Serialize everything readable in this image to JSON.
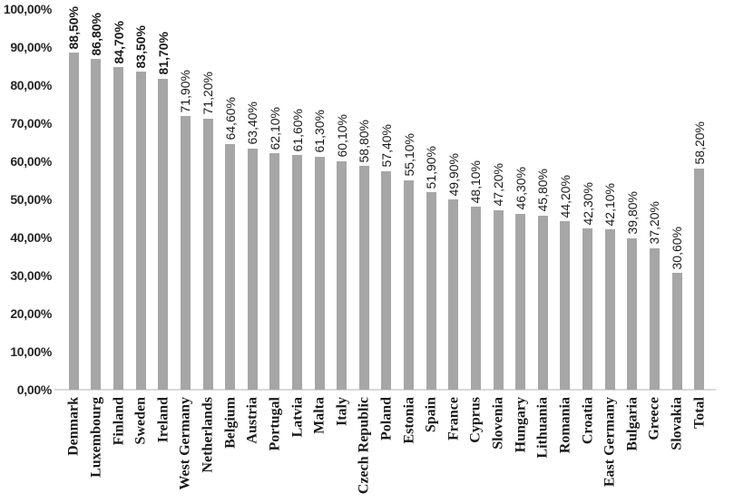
{
  "chart_data": {
    "type": "bar",
    "title": "",
    "xlabel": "",
    "ylabel": "",
    "categories": [
      "Denmark",
      "Luxembourg",
      "Finland",
      "Sweden",
      "Ireland",
      "West Germany",
      "Netherlands",
      "Belgium",
      "Austria",
      "Portugal",
      "Latvia",
      "Malta",
      "Italy",
      "Czech Republic",
      "Poland",
      "Estonia",
      "Spain",
      "France",
      "Cyprus",
      "Slovenia",
      "Hungary",
      "Lithuania",
      "Romania",
      "Croatia",
      "East Germany",
      "Bulgaria",
      "Greece",
      "Slovakia",
      "Total"
    ],
    "values": [
      88.5,
      86.8,
      84.7,
      83.5,
      81.7,
      71.9,
      71.2,
      64.6,
      63.4,
      62.1,
      61.6,
      61.3,
      60.1,
      58.8,
      57.4,
      55.1,
      51.9,
      49.9,
      48.1,
      47.2,
      46.3,
      45.8,
      44.2,
      42.3,
      42.1,
      39.8,
      37.2,
      30.6,
      58.2
    ],
    "data_labels": [
      "88,50%",
      "86,80%",
      "84,70%",
      "83,50%",
      "81,70%",
      "71,90%",
      "71,20%",
      "64,60%",
      "63,40%",
      "62,10%",
      "61,60%",
      "61,30%",
      "60,10%",
      "58,80%",
      "57,40%",
      "55,10%",
      "51,90%",
      "49,90%",
      "48,10%",
      "47,20%",
      "46,30%",
      "45,80%",
      "44,20%",
      "42,30%",
      "42,10%",
      "39,80%",
      "37,20%",
      "30,60%",
      "58,20%"
    ],
    "bold_data_label_indices": [
      0,
      1,
      2,
      3,
      4
    ],
    "ylim": [
      0,
      100
    ],
    "ytick_labels": [
      "0,00%",
      "10,00%",
      "20,00%",
      "30,00%",
      "40,00%",
      "50,00%",
      "60,00%",
      "70,00%",
      "80,00%",
      "90,00%",
      "100,00%"
    ],
    "grid": false,
    "legend": false,
    "bar_color": "#a6a6a6",
    "axis_line_color": "#d9d9d9",
    "data_label_color": "#1a1a1a",
    "ytick_color": "#262626",
    "category_label_color": "#1a1a1a",
    "background_color": "#ffffff"
  }
}
